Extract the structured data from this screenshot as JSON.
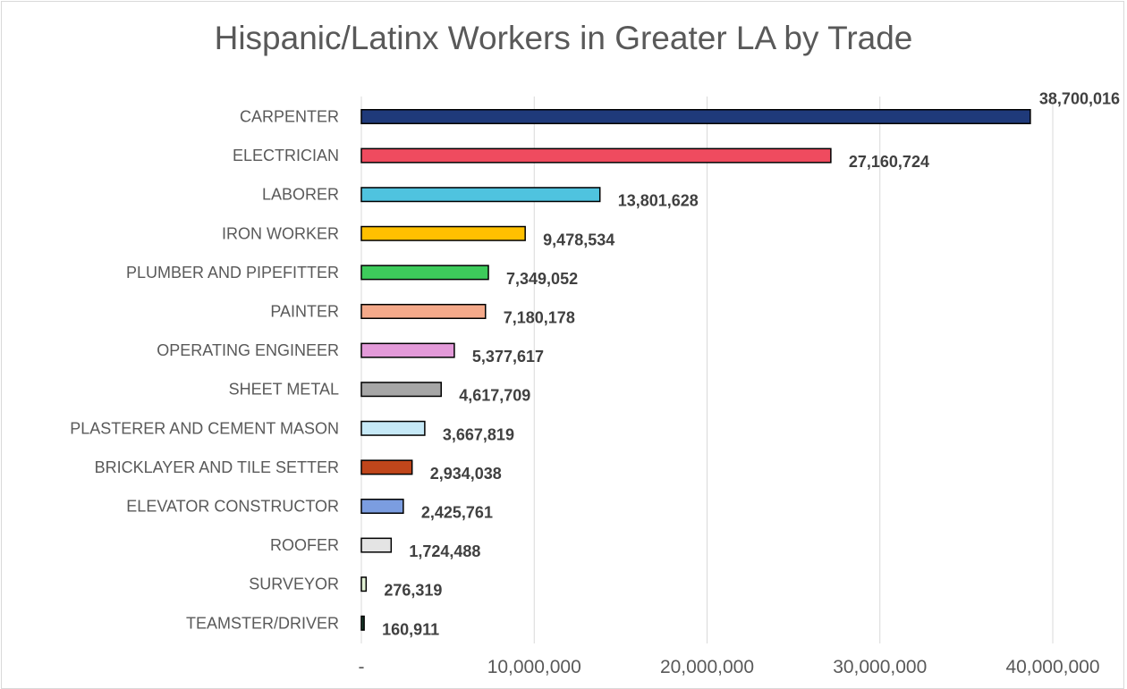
{
  "chart_data": {
    "type": "bar",
    "orientation": "horizontal",
    "title": "Hispanic/Latinx Workers in Greater LA by Trade",
    "xlabel": "",
    "ylabel": "",
    "xlim": [
      0,
      40000000
    ],
    "x_ticks": [
      0,
      10000000,
      20000000,
      30000000,
      40000000
    ],
    "x_tick_labels": [
      "-",
      "10,000,000",
      "20,000,000",
      "30,000,000",
      "40,000,000"
    ],
    "grid": "vertical",
    "legend": "none",
    "categories": [
      "CARPENTER",
      "ELECTRICIAN",
      "LABORER",
      "IRON WORKER",
      "PLUMBER AND PIPEFITTER",
      "PAINTER",
      "OPERATING ENGINEER",
      "SHEET METAL",
      "PLASTERER AND CEMENT MASON",
      "BRICKLAYER AND TILE SETTER",
      "ELEVATOR CONSTRUCTOR",
      "ROOFER",
      "SURVEYOR",
      "TEAMSTER/DRIVER"
    ],
    "values": [
      38700016,
      27160724,
      13801628,
      9478534,
      7349052,
      7180178,
      5377617,
      4617709,
      3667819,
      2934038,
      2425761,
      1724488,
      276319,
      160911
    ],
    "value_labels": [
      "38,700,016",
      "27,160,724",
      "13,801,628",
      "9,478,534",
      "7,349,052",
      "7,180,178",
      "5,377,617",
      "4,617,709",
      "3,667,819",
      "2,934,038",
      "2,425,761",
      "1,724,488",
      "276,319",
      "160,911"
    ],
    "colors": [
      "#1f3a7a",
      "#ef4b5f",
      "#4fc3df",
      "#ffc000",
      "#3dcb5b",
      "#f4a98a",
      "#e39ad9",
      "#a6a6a6",
      "#c6e9f7",
      "#c0461b",
      "#7b9de0",
      "#e4e4e4",
      "#e2f2d5",
      "#1a3d2e"
    ]
  }
}
